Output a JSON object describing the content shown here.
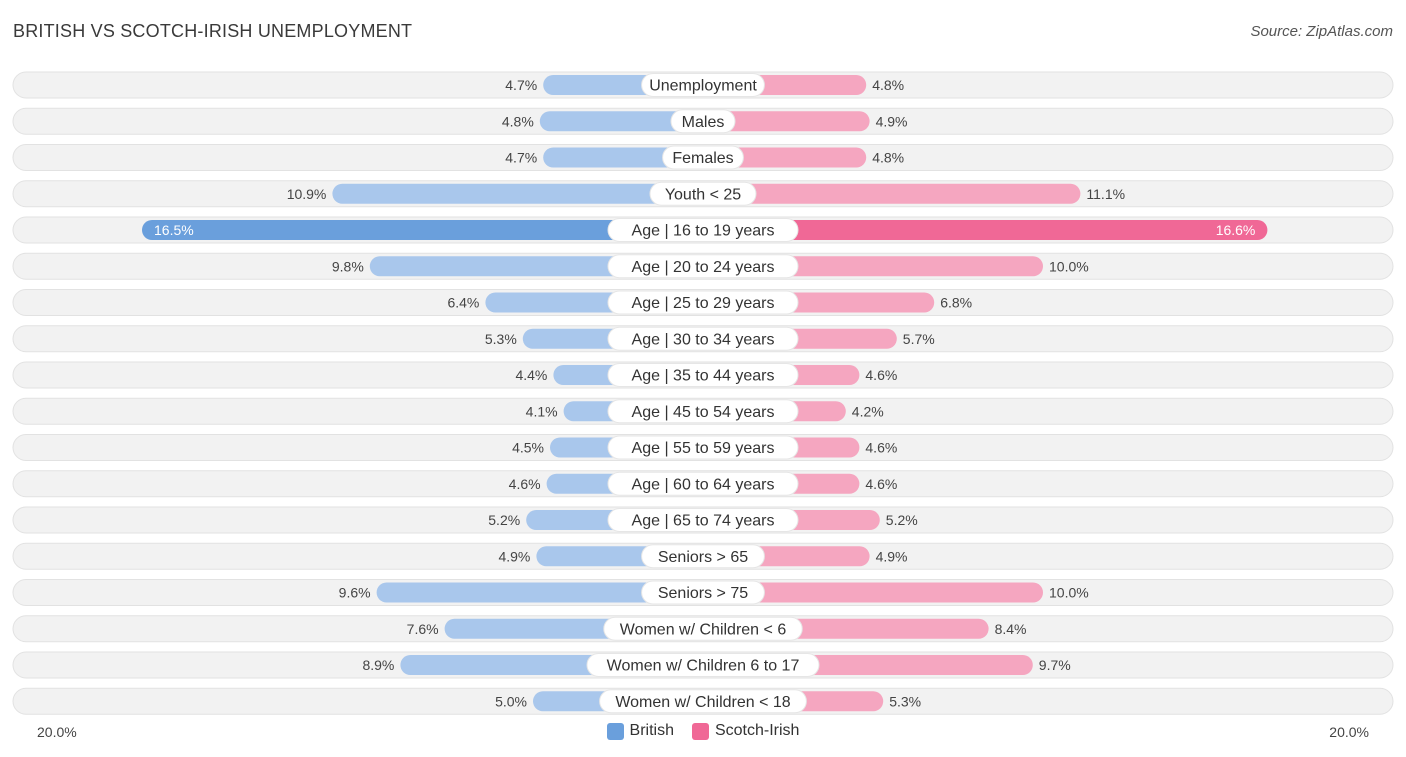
{
  "header": {
    "title": "BRITISH VS SCOTCH-IRISH UNEMPLOYMENT",
    "source": "Source: ZipAtlas.com"
  },
  "colors": {
    "british_strong": "#6a9fdc",
    "british_light": "#a9c7ec",
    "scotch_strong": "#f06896",
    "scotch_light": "#f5a6c0",
    "row_bg": "#f2f2f2",
    "row_border": "#e2e2e2"
  },
  "axis": {
    "left_label": "20.0%",
    "right_label": "20.0%"
  },
  "legend": {
    "british": "British",
    "scotch": "Scotch-Irish"
  },
  "chart_data": {
    "type": "bar",
    "orientation": "diverging-horizontal",
    "title": "BRITISH VS SCOTCH-IRISH UNEMPLOYMENT",
    "xlim": [
      -20,
      20
    ],
    "unit": "%",
    "categories": [
      "Unemployment",
      "Males",
      "Females",
      "Youth < 25",
      "Age | 16 to 19 years",
      "Age | 20 to 24 years",
      "Age | 25 to 29 years",
      "Age | 30 to 34 years",
      "Age | 35 to 44 years",
      "Age | 45 to 54 years",
      "Age | 55 to 59 years",
      "Age | 60 to 64 years",
      "Age | 65 to 74 years",
      "Seniors > 65",
      "Seniors > 75",
      "Women w/ Children < 6",
      "Women w/ Children 6 to 17",
      "Women w/ Children < 18"
    ],
    "series": [
      {
        "name": "British",
        "values": [
          4.7,
          4.8,
          4.7,
          10.9,
          16.5,
          9.8,
          6.4,
          5.3,
          4.4,
          4.1,
          4.5,
          4.6,
          5.2,
          4.9,
          9.6,
          7.6,
          8.9,
          5.0
        ],
        "labels": [
          "4.7%",
          "4.8%",
          "4.7%",
          "10.9%",
          "16.5%",
          "9.8%",
          "6.4%",
          "5.3%",
          "4.4%",
          "4.1%",
          "4.5%",
          "4.6%",
          "5.2%",
          "4.9%",
          "9.6%",
          "7.6%",
          "8.9%",
          "5.0%"
        ]
      },
      {
        "name": "Scotch-Irish",
        "values": [
          4.8,
          4.9,
          4.8,
          11.1,
          16.6,
          10.0,
          6.8,
          5.7,
          4.6,
          4.2,
          4.6,
          4.6,
          5.2,
          4.9,
          10.0,
          8.4,
          9.7,
          5.3
        ],
        "labels": [
          "4.8%",
          "4.9%",
          "4.8%",
          "11.1%",
          "16.6%",
          "10.0%",
          "6.8%",
          "5.7%",
          "4.6%",
          "4.2%",
          "4.6%",
          "4.6%",
          "5.2%",
          "4.9%",
          "10.0%",
          "8.4%",
          "9.7%",
          "5.3%"
        ]
      }
    ]
  }
}
